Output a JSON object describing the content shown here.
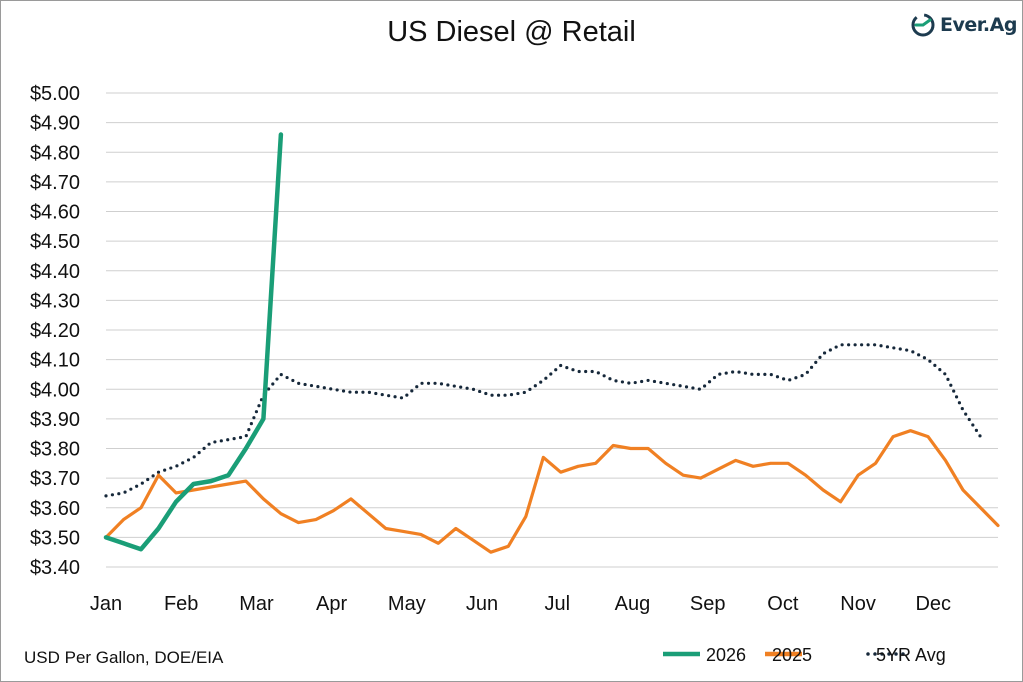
{
  "title": "US Diesel @ Retail",
  "brand": {
    "name": "Ever.Ag",
    "color": "#1d3b4f",
    "accent": "#1a9e77"
  },
  "footnote": "USD Per Gallon, DOE/EIA",
  "chart_data": {
    "type": "line",
    "title": "US Diesel @ Retail",
    "xlabel": "",
    "ylabel": "USD Per Gallon",
    "xlim": [
      0,
      51
    ],
    "ylim": [
      3.4,
      5.0
    ],
    "grid": true,
    "legend_position": "bottom-right",
    "month_labels": [
      "Jan",
      "Feb",
      "Mar",
      "Apr",
      "May",
      "Jun",
      "Jul",
      "Aug",
      "Sep",
      "Oct",
      "Nov",
      "Dec"
    ],
    "month_positions": [
      0,
      4.3,
      8.6,
      12.9,
      17.2,
      21.5,
      25.8,
      30.1,
      34.4,
      38.7,
      43.0,
      47.3
    ],
    "y_ticks": [
      3.4,
      3.5,
      3.6,
      3.7,
      3.8,
      3.9,
      4.0,
      4.1,
      4.2,
      4.3,
      4.4,
      4.5,
      4.6,
      4.7,
      4.8,
      4.9,
      5.0
    ],
    "y_tick_labels": [
      "$3.40",
      "$3.50",
      "$3.60",
      "$3.70",
      "$3.80",
      "$3.90",
      "$4.00",
      "$4.10",
      "$4.20",
      "$4.30",
      "$4.40",
      "$4.50",
      "$4.60",
      "$4.70",
      "$4.80",
      "$4.90",
      "$5.00"
    ],
    "series": [
      {
        "name": "5YR Avg",
        "color": "#16283a",
        "style": "dotted",
        "x": [
          0,
          1,
          2,
          3,
          4,
          5,
          6,
          7,
          8,
          9,
          10,
          11,
          12,
          13,
          14,
          15,
          16,
          17,
          18,
          19,
          20,
          21,
          22,
          23,
          24,
          25,
          26,
          27,
          28,
          29,
          30,
          31,
          32,
          33,
          34,
          35,
          36,
          37,
          38,
          39,
          40,
          41,
          42,
          43,
          44,
          45,
          46,
          47,
          48,
          49,
          50
        ],
        "values": [
          3.64,
          3.65,
          3.68,
          3.72,
          3.74,
          3.77,
          3.82,
          3.83,
          3.84,
          3.98,
          4.05,
          4.02,
          4.01,
          4.0,
          3.99,
          3.99,
          3.98,
          3.97,
          4.02,
          4.02,
          4.01,
          4.0,
          3.98,
          3.98,
          3.99,
          4.03,
          4.08,
          4.06,
          4.06,
          4.03,
          4.02,
          4.03,
          4.02,
          4.01,
          4.0,
          4.05,
          4.06,
          4.05,
          4.05,
          4.03,
          4.05,
          4.12,
          4.15,
          4.15,
          4.15,
          4.14,
          4.13,
          4.1,
          4.05,
          3.93,
          3.84
        ]
      },
      {
        "name": "2025",
        "color": "#f08023",
        "style": "solid",
        "x": [
          0,
          1,
          2,
          3,
          4,
          5,
          6,
          7,
          8,
          9,
          10,
          11,
          12,
          13,
          14,
          15,
          16,
          17,
          18,
          19,
          20,
          21,
          22,
          23,
          24,
          25,
          26,
          27,
          28,
          29,
          30,
          31,
          32,
          33,
          34,
          35,
          36,
          37,
          38,
          39,
          40,
          41,
          42,
          43,
          44,
          45,
          46,
          47,
          48,
          49,
          50,
          51
        ],
        "values": [
          3.5,
          3.56,
          3.6,
          3.71,
          3.65,
          3.66,
          3.67,
          3.68,
          3.69,
          3.63,
          3.58,
          3.55,
          3.56,
          3.59,
          3.63,
          3.58,
          3.53,
          3.52,
          3.51,
          3.48,
          3.53,
          3.49,
          3.45,
          3.47,
          3.57,
          3.77,
          3.72,
          3.74,
          3.75,
          3.81,
          3.8,
          3.8,
          3.75,
          3.71,
          3.7,
          3.73,
          3.76,
          3.74,
          3.75,
          3.75,
          3.71,
          3.66,
          3.62,
          3.71,
          3.75,
          3.84,
          3.86,
          3.84,
          3.76,
          3.66,
          3.6,
          3.54
        ]
      },
      {
        "name": "2026",
        "color": "#1a9e77",
        "style": "solid",
        "x": [
          0,
          1,
          2,
          3,
          4,
          5,
          6,
          7,
          8,
          9,
          10
        ],
        "values": [
          3.5,
          3.48,
          3.46,
          3.53,
          3.62,
          3.68,
          3.69,
          3.71,
          3.8,
          3.9,
          4.86
        ]
      }
    ],
    "legend": [
      {
        "name": "2026",
        "color": "#1a9e77",
        "style": "solid"
      },
      {
        "name": "2025",
        "color": "#f08023",
        "style": "solid"
      },
      {
        "name": "5YR Avg",
        "color": "#16283a",
        "style": "dotted"
      }
    ]
  }
}
